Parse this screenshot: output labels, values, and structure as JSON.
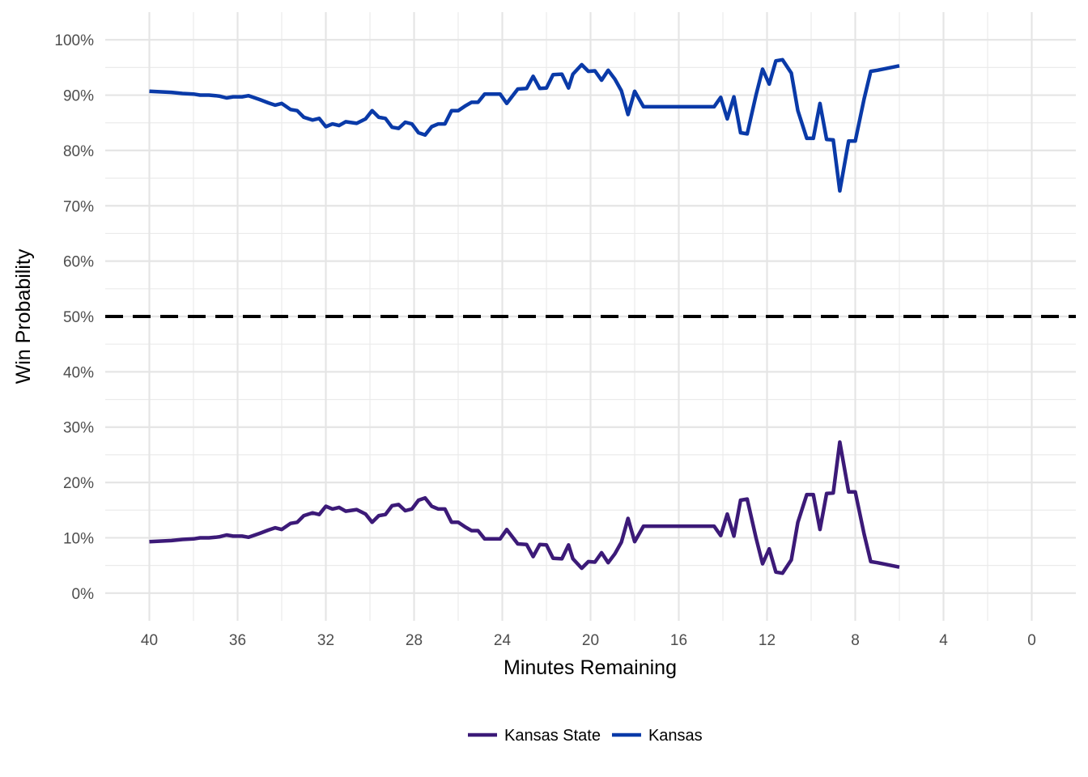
{
  "chart_data": {
    "type": "line",
    "xlabel": "Minutes Remaining",
    "ylabel": "Win Probability",
    "xlim": [
      42,
      -2
    ],
    "ylim": [
      -0.05,
      1.05
    ],
    "x_ticks": [
      40,
      36,
      32,
      28,
      24,
      20,
      16,
      12,
      8,
      4,
      0
    ],
    "x_tick_labels": [
      "40",
      "36",
      "32",
      "28",
      "24",
      "20",
      "16",
      "12",
      "8",
      "4",
      "0"
    ],
    "y_ticks": [
      0,
      0.1,
      0.2,
      0.3,
      0.4,
      0.5,
      0.6,
      0.7,
      0.8,
      0.9,
      1.0
    ],
    "y_tick_labels": [
      "0%",
      "10%",
      "20%",
      "30%",
      "40%",
      "50%",
      "60%",
      "70%",
      "80%",
      "90%",
      "100%"
    ],
    "grid": true,
    "reference_line": {
      "y": 0.5,
      "style": "dashed",
      "color": "#000000"
    },
    "legend_position": "bottom",
    "series": [
      {
        "name": "Kansas State",
        "color": "#3c1a78",
        "x": [
          40,
          39,
          38.5,
          38,
          37.7,
          37.3,
          37,
          36.8,
          36.5,
          36.2,
          35.8,
          35.5,
          35,
          34.6,
          34.3,
          34,
          33.6,
          33.3,
          33,
          32.6,
          32.3,
          32,
          31.7,
          31.4,
          31.1,
          30.6,
          30.2,
          29.9,
          29.6,
          29.3,
          29,
          28.7,
          28.4,
          28.1,
          27.8,
          27.5,
          27.2,
          26.9,
          26.6,
          26.3,
          26,
          25.7,
          25.4,
          25.1,
          24.8,
          24.4,
          24.1,
          23.8,
          23.3,
          22.9,
          22.6,
          22.3,
          22,
          21.7,
          21.3,
          21,
          20.8,
          20.4,
          20.1,
          19.8,
          19.5,
          19.2,
          18.9,
          18.6,
          18.3,
          18,
          17.6,
          17.3,
          17,
          16.7,
          16.4,
          14.4,
          14.1,
          13.8,
          13.5,
          13.2,
          12.9,
          12.5,
          12.2,
          11.9,
          11.6,
          11.3,
          10.9,
          10.6,
          10.2,
          9.9,
          9.6,
          9.3,
          9,
          8.7,
          8.3,
          8,
          7.6,
          7.3,
          7,
          6
        ],
        "values": [
          0.093,
          0.095,
          0.097,
          0.098,
          0.1,
          0.1,
          0.101,
          0.102,
          0.105,
          0.103,
          0.103,
          0.101,
          0.108,
          0.114,
          0.118,
          0.115,
          0.126,
          0.128,
          0.14,
          0.145,
          0.142,
          0.157,
          0.152,
          0.155,
          0.148,
          0.151,
          0.143,
          0.128,
          0.14,
          0.142,
          0.158,
          0.16,
          0.149,
          0.152,
          0.168,
          0.172,
          0.157,
          0.152,
          0.152,
          0.128,
          0.128,
          0.12,
          0.113,
          0.113,
          0.098,
          0.098,
          0.098,
          0.115,
          0.089,
          0.088,
          0.066,
          0.088,
          0.087,
          0.063,
          0.062,
          0.087,
          0.062,
          0.045,
          0.057,
          0.056,
          0.073,
          0.055,
          0.071,
          0.092,
          0.135,
          0.093,
          0.121,
          0.121,
          0.121,
          0.121,
          0.121,
          0.121,
          0.104,
          0.143,
          0.103,
          0.168,
          0.17,
          0.1,
          0.053,
          0.08,
          0.038,
          0.036,
          0.06,
          0.128,
          0.178,
          0.178,
          0.115,
          0.18,
          0.181,
          0.273,
          0.183,
          0.183,
          0.107,
          0.057,
          0.055,
          0.047
        ]
      },
      {
        "name": "Kansas",
        "color": "#0a3aa8",
        "x": [
          40,
          39,
          38.5,
          38,
          37.7,
          37.3,
          37,
          36.8,
          36.5,
          36.2,
          35.8,
          35.5,
          35,
          34.6,
          34.3,
          34,
          33.6,
          33.3,
          33,
          32.6,
          32.3,
          32,
          31.7,
          31.4,
          31.1,
          30.6,
          30.2,
          29.9,
          29.6,
          29.3,
          29,
          28.7,
          28.4,
          28.1,
          27.8,
          27.5,
          27.2,
          26.9,
          26.6,
          26.3,
          26,
          25.7,
          25.4,
          25.1,
          24.8,
          24.4,
          24.1,
          23.8,
          23.3,
          22.9,
          22.6,
          22.3,
          22,
          21.7,
          21.3,
          21,
          20.8,
          20.4,
          20.1,
          19.8,
          19.5,
          19.2,
          18.9,
          18.6,
          18.3,
          18,
          17.6,
          17.3,
          17,
          16.7,
          16.4,
          14.4,
          14.1,
          13.8,
          13.5,
          13.2,
          12.9,
          12.5,
          12.2,
          11.9,
          11.6,
          11.3,
          10.9,
          10.6,
          10.2,
          9.9,
          9.6,
          9.3,
          9,
          8.7,
          8.3,
          8,
          7.6,
          7.3,
          7,
          6
        ],
        "values": [
          0.907,
          0.905,
          0.903,
          0.902,
          0.9,
          0.9,
          0.899,
          0.898,
          0.895,
          0.897,
          0.897,
          0.899,
          0.892,
          0.886,
          0.882,
          0.885,
          0.874,
          0.872,
          0.86,
          0.855,
          0.858,
          0.843,
          0.848,
          0.845,
          0.852,
          0.849,
          0.857,
          0.872,
          0.86,
          0.858,
          0.842,
          0.84,
          0.851,
          0.848,
          0.832,
          0.828,
          0.843,
          0.848,
          0.848,
          0.872,
          0.872,
          0.88,
          0.887,
          0.887,
          0.902,
          0.902,
          0.902,
          0.885,
          0.911,
          0.912,
          0.934,
          0.912,
          0.913,
          0.937,
          0.938,
          0.913,
          0.938,
          0.955,
          0.943,
          0.944,
          0.927,
          0.945,
          0.929,
          0.908,
          0.865,
          0.907,
          0.879,
          0.879,
          0.879,
          0.879,
          0.879,
          0.879,
          0.896,
          0.857,
          0.897,
          0.832,
          0.83,
          0.9,
          0.947,
          0.92,
          0.962,
          0.964,
          0.94,
          0.872,
          0.822,
          0.822,
          0.885,
          0.82,
          0.819,
          0.727,
          0.817,
          0.817,
          0.893,
          0.943,
          0.945,
          0.953
        ]
      }
    ]
  }
}
